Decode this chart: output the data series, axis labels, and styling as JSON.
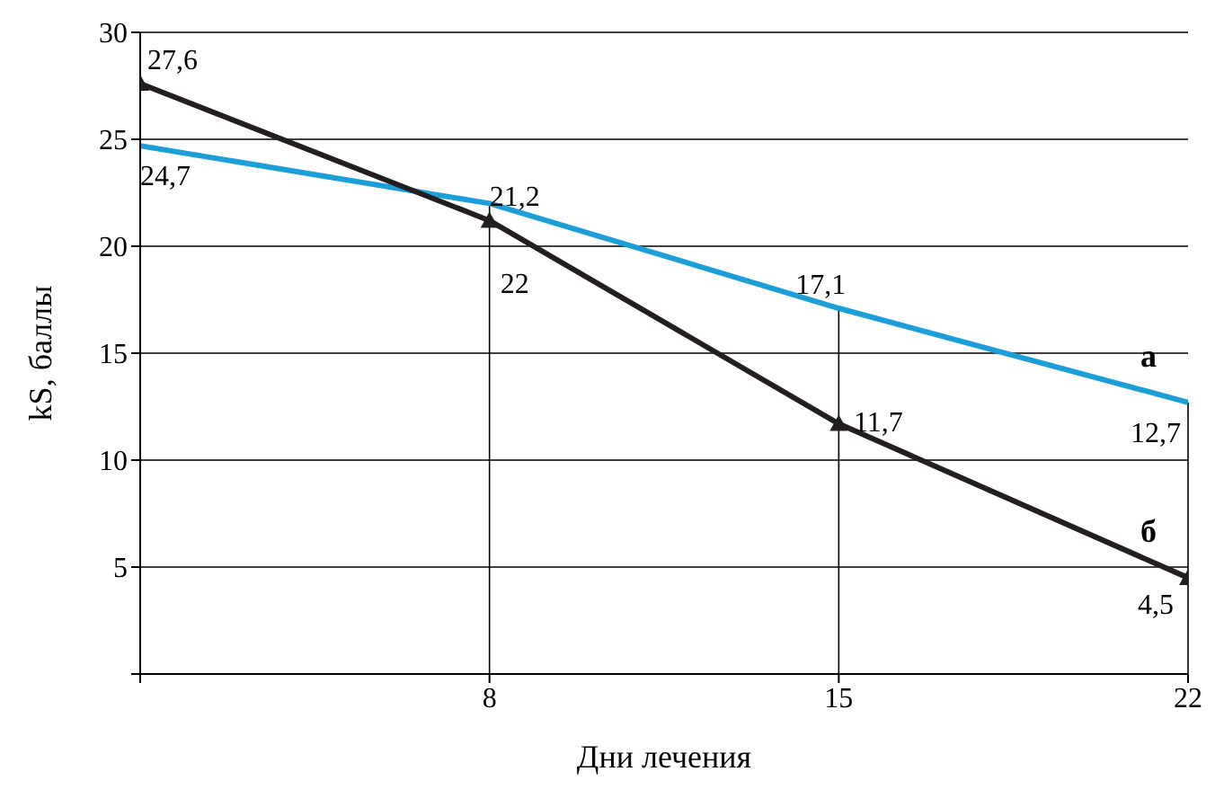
{
  "chart_data": {
    "type": "line",
    "xlabel": "Дни лечения",
    "ylabel": "kS, баллы",
    "x": [
      1,
      8,
      15,
      22
    ],
    "series": [
      {
        "name": "а",
        "color": "#1a9fd9",
        "marker": "none",
        "values": [
          24.7,
          22,
          17.1,
          12.7
        ],
        "value_labels": [
          "24,7",
          "22",
          "17,1",
          "12,7"
        ]
      },
      {
        "name": "б",
        "color": "#231f20",
        "marker": "triangle",
        "values": [
          27.6,
          21.2,
          11.7,
          4.5
        ],
        "value_labels": [
          "27,6",
          "21,2",
          "11,7",
          "4,5"
        ]
      }
    ],
    "xlim": [
      1,
      22
    ],
    "xticks": [
      {
        "value": 1,
        "label": null
      },
      8,
      15,
      22
    ],
    "ylim": [
      0,
      30
    ],
    "yticks": [
      {
        "value": 0,
        "label": null
      },
      5,
      10,
      15,
      20,
      25,
      30
    ],
    "grid": "y",
    "line_style": "solid",
    "ref_lines": [
      {
        "axis": "x",
        "value": 8,
        "color": "#000000"
      },
      {
        "axis": "x",
        "value": 15,
        "color": "#000000"
      },
      {
        "axis": "x",
        "value": 22,
        "color": "#000000"
      }
    ]
  }
}
